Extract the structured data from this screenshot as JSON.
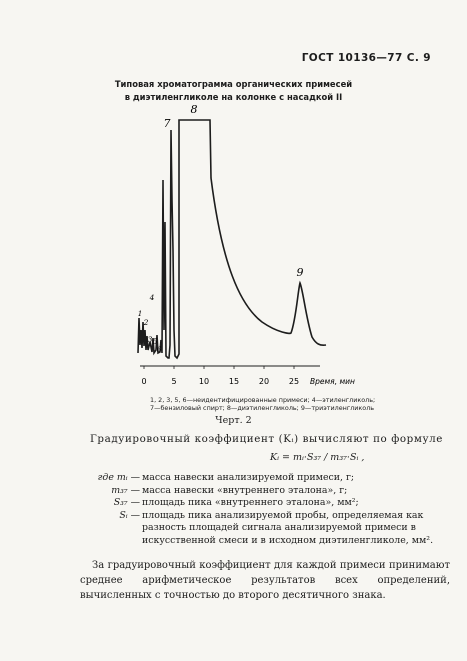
{
  "header": {
    "text": "ГОСТ 10136—77 С. 9"
  },
  "figure": {
    "title_line1": "Типовая хроматограмма органических примесей",
    "title_line2": "в диэтиленгликоле на колонке с насадкой II",
    "caption_line1": "1, 2, 3, 5, 6—неидентифицированные примеси; 4—этиленгликоль;",
    "caption_line2": "7—бензиловый спирт; 8—диэтиленгликоль; 9—триэтиленгликоль",
    "label": "Черт. 2"
  },
  "chart_data": {
    "type": "line",
    "title": "",
    "xlabel": "Время, мин",
    "ylabel": "",
    "xlim": [
      0,
      30
    ],
    "x_ticks": [
      "0",
      "5",
      "10",
      "15",
      "20",
      "25"
    ],
    "peaks": [
      {
        "label": "1",
        "retention_min": 0.0
      },
      {
        "label": "2",
        "retention_min": 0.4
      },
      {
        "label": "3",
        "retention_min": 0.9
      },
      {
        "label": "4",
        "retention_min": 1.2
      },
      {
        "label": "5",
        "retention_min": 1.9
      },
      {
        "label": "6",
        "retention_min": 2.9
      },
      {
        "label": "7",
        "retention_min": 3.8
      },
      {
        "label": "8",
        "retention_min": 6.0
      },
      {
        "label": "9",
        "retention_min": 25.0
      }
    ],
    "grid": false
  },
  "body": {
    "p1": "Градуировочный коэффициент (Kᵢ) вычисляют по формуле",
    "formula": "Kᵢ = mᵢ·S₃₇ / m₃₇·Sᵢ ,",
    "definitions": [
      {
        "sym": "где mᵢ —",
        "text": "масса навески анализируемой примеси, г;"
      },
      {
        "sym": "m₃₇ —",
        "text": "масса навески «внутреннего эталона», г;"
      },
      {
        "sym": "S₃₇ —",
        "text": "площадь пика «внутреннего эталона», мм²;"
      },
      {
        "sym": "Sᵢ —",
        "text": "площадь пика анализируемой пробы, определяемая как разность площадей сигнала анализируемой примеси в искусственной смеси и в исходном диэтиленгликоле, мм²."
      }
    ],
    "p2": "За градуировочный коэффициент для каждой примеси принимают среднее арифметическое результатов всех определений, вычисленных с точностью до второго десятичного знака."
  }
}
